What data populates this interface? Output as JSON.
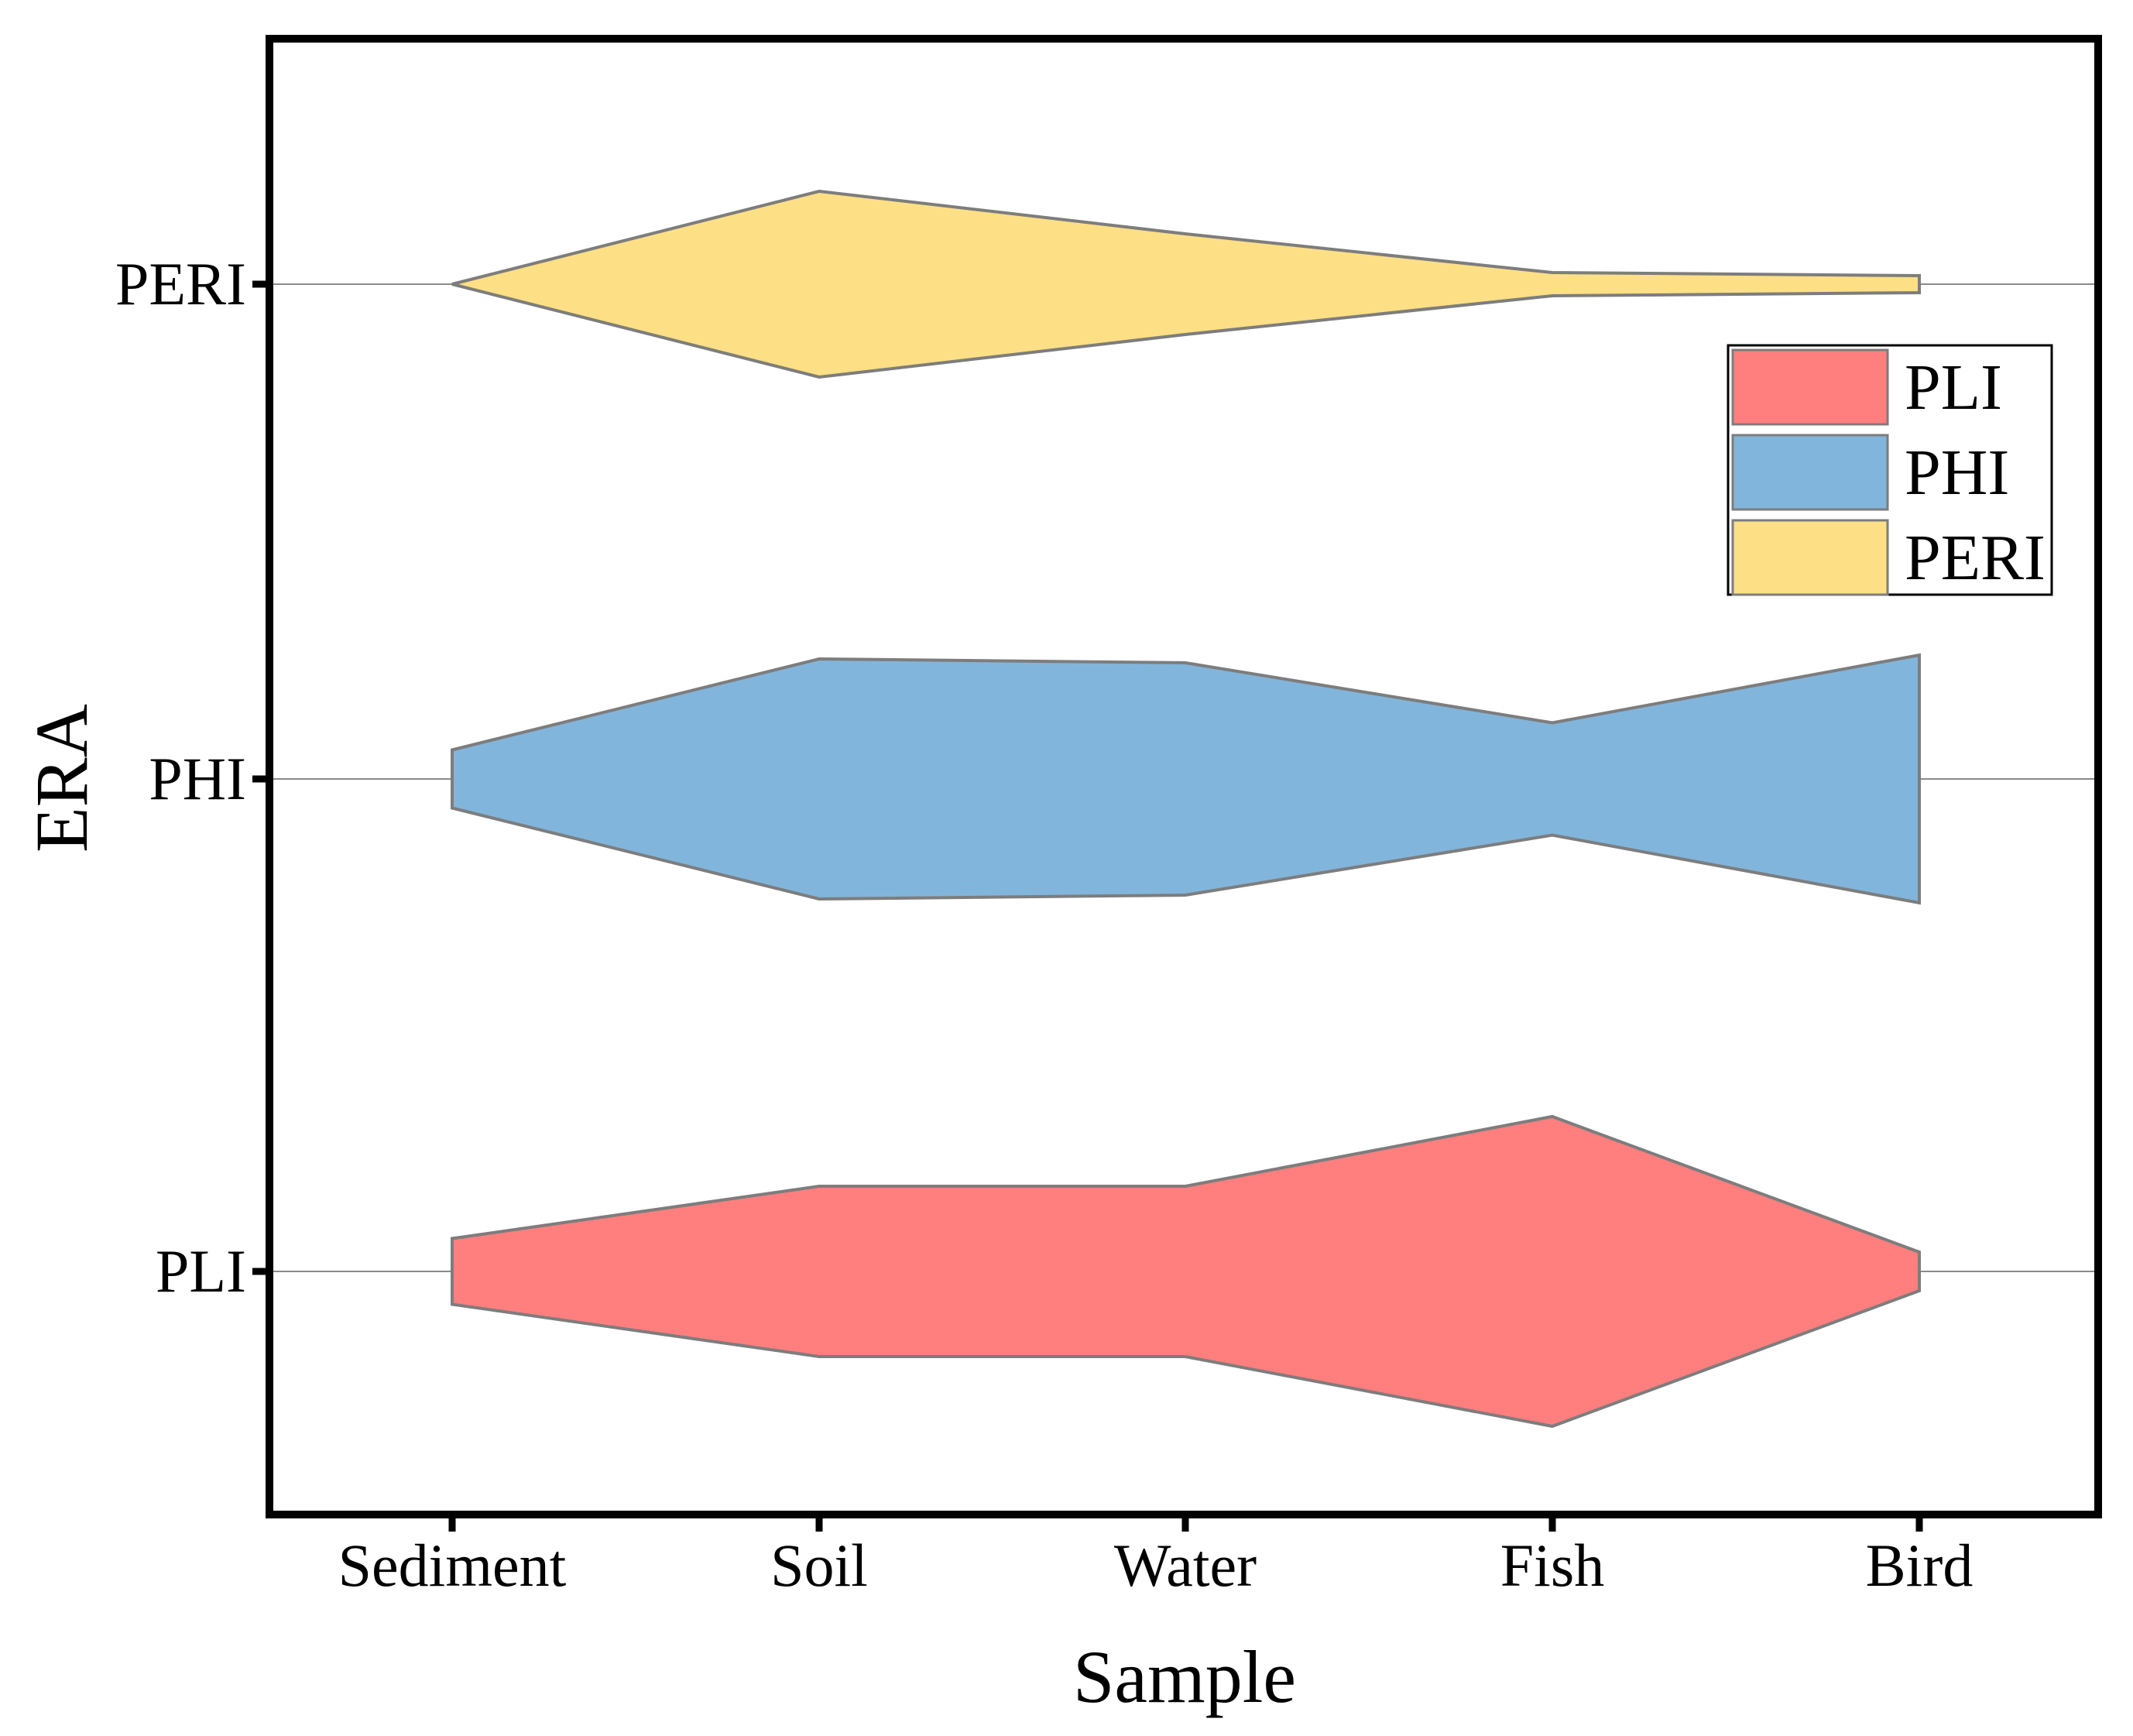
{
  "chart_data": {
    "type": "ridge-area",
    "title": "",
    "xlabel": "Sample",
    "ylabel": "ERA",
    "categories": [
      "Sediment",
      "Soil",
      "Water",
      "Fish",
      "Bird"
    ],
    "rows": [
      "PLI",
      "PHI",
      "PERI"
    ],
    "series": [
      {
        "name": "PLI",
        "color": "#ff7f7f",
        "half_widths": [
          0.085,
          0.22,
          0.22,
          0.4,
          0.05
        ],
        "offsets": [
          0,
          0,
          0,
          0,
          0
        ]
      },
      {
        "name": "PHI",
        "color": "#82b5db",
        "half_widths": [
          0.075,
          0.31,
          0.3,
          0.145,
          0.32
        ],
        "offsets": [
          0,
          0,
          0,
          0,
          0
        ]
      },
      {
        "name": "PERI",
        "color": "#fddf85",
        "half_widths": [
          0.0,
          0.24,
          0.13,
          0.03,
          0.022
        ],
        "offsets": [
          0,
          0,
          0,
          0.0,
          0.0
        ]
      }
    ],
    "legend": {
      "position": "top-right",
      "entries": [
        "PLI",
        "PHI",
        "PERI"
      ]
    },
    "grid": false
  }
}
